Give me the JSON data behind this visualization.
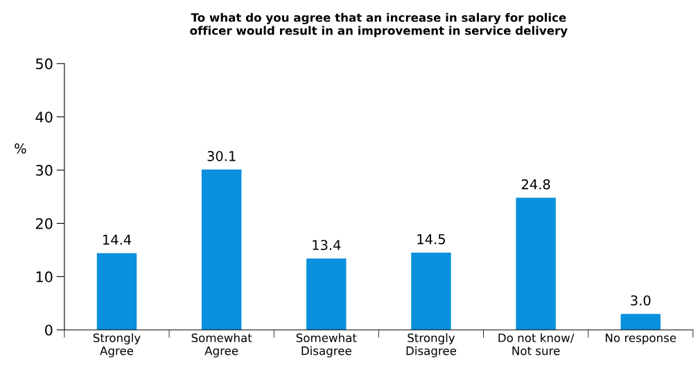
{
  "chart_data": {
    "type": "bar",
    "title": "To what do you agree that an increase in salary for police\nofficer would result in an improvement in service delivery",
    "ylabel": "%",
    "categories": [
      "Strongly\nAgree",
      "Somewhat\nAgree",
      "Somewhat\nDisagree",
      "Strongly\nDisagree",
      "Do not know/\nNot sure",
      "No response"
    ],
    "values": [
      14.4,
      30.1,
      13.4,
      14.5,
      24.8,
      3.0
    ],
    "value_labels": [
      "14.4",
      "30.1",
      "13.4",
      "14.5",
      "24.8",
      "3.0"
    ],
    "color": "#0a90dc",
    "ylim": [
      0,
      50
    ],
    "yticks": [
      0,
      10,
      20,
      30,
      40,
      50
    ],
    "grid": false,
    "legend": false
  }
}
